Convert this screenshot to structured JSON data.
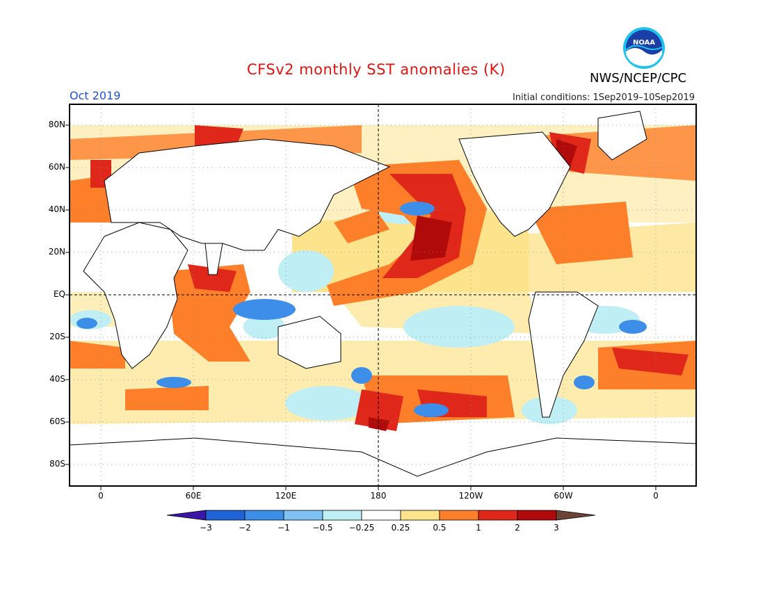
{
  "header": {
    "title": "CFSv2 monthly SST anomalies (K)",
    "agency": "NWS/NCEP/CPC",
    "logo_text": "NOAA",
    "month": "Oct 2019",
    "initial_conditions": "Initial conditions: 1Sep2019–10Sep2019"
  },
  "map": {
    "lat_labels": [
      "80N",
      "60N",
      "40N",
      "20N",
      "EQ",
      "20S",
      "40S",
      "60S",
      "80S"
    ],
    "lon_labels": [
      "0",
      "60E",
      "120E",
      "180",
      "120W",
      "60W",
      "0"
    ]
  },
  "colorbar": {
    "labels": [
      "−3",
      "−2",
      "−1",
      "−0.5",
      "−0.25",
      "0.25",
      "0.5",
      "1",
      "2",
      "3"
    ],
    "colors": [
      "#3a15a8",
      "#1f63d6",
      "#3c8ee8",
      "#7fc0f2",
      "#bfeef5",
      "#ffffff",
      "#fde38c",
      "#fd7f2a",
      "#e0281a",
      "#b00a0a",
      "#6b4337"
    ]
  },
  "colors": {
    "title": "#e0140f",
    "month": "#1f4fd6",
    "strong_warm": "#b00a0a",
    "warm": "#e0281a",
    "mild_warm": "#fd7f2a",
    "weak_warm": "#fde38c",
    "weak_cool": "#bfeef5",
    "cool": "#3c8ee8"
  }
}
